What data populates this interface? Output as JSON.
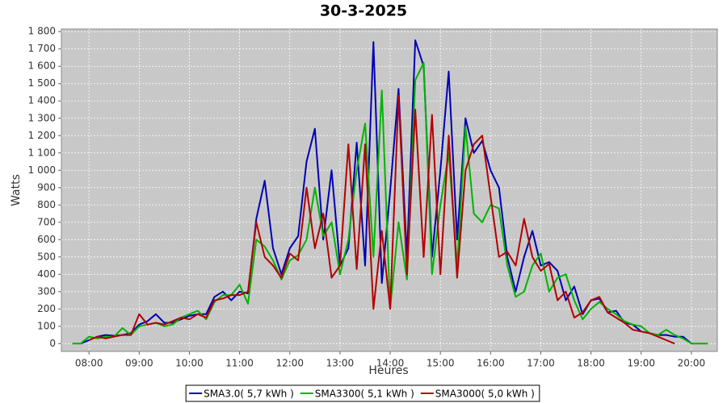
{
  "chart_data": {
    "type": "line",
    "title": "30-3-2025",
    "xlabel": "Heures",
    "ylabel": "Watts",
    "x": [
      460,
      470,
      480,
      490,
      500,
      510,
      520,
      530,
      540,
      550,
      560,
      570,
      580,
      590,
      600,
      610,
      620,
      630,
      640,
      650,
      660,
      670,
      680,
      690,
      700,
      710,
      720,
      730,
      740,
      750,
      760,
      770,
      780,
      790,
      800,
      810,
      820,
      830,
      840,
      850,
      860,
      870,
      880,
      890,
      900,
      910,
      920,
      930,
      940,
      950,
      960,
      970,
      980,
      990,
      1000,
      1010,
      1020,
      1030,
      1040,
      1050,
      1060,
      1070,
      1080,
      1090,
      1100,
      1110,
      1120,
      1130,
      1140,
      1150,
      1160,
      1170,
      1180,
      1190,
      1200,
      1210,
      1220
    ],
    "series": [
      {
        "name": "SMA3.0( 5,7 kWh )",
        "color": "#0000b4",
        "values": [
          null,
          0,
          20,
          40,
          50,
          45,
          50,
          60,
          110,
          130,
          170,
          120,
          120,
          140,
          160,
          170,
          170,
          270,
          300,
          250,
          300,
          290,
          720,
          940,
          550,
          400,
          550,
          620,
          1050,
          1240,
          600,
          1000,
          450,
          550,
          1160,
          450,
          1740,
          350,
          880,
          1470,
          500,
          1750,
          1600,
          500,
          1000,
          1570,
          600,
          1300,
          1100,
          1170,
          1000,
          900,
          500,
          300,
          500,
          650,
          450,
          470,
          420,
          250,
          330,
          170,
          250,
          260,
          180,
          190,
          120,
          110,
          70,
          60,
          50,
          50,
          40,
          40,
          0,
          null,
          null
        ]
      },
      {
        "name": "SMA3300( 5,1 kWh )",
        "color": "#00b400",
        "values": [
          0,
          0,
          40,
          30,
          40,
          40,
          90,
          50,
          100,
          110,
          120,
          100,
          110,
          150,
          170,
          190,
          140,
          240,
          280,
          280,
          340,
          230,
          600,
          560,
          480,
          370,
          480,
          510,
          600,
          900,
          620,
          700,
          400,
          600,
          1000,
          1270,
          500,
          1460,
          200,
          700,
          370,
          1520,
          1620,
          400,
          800,
          1100,
          450,
          1250,
          750,
          700,
          800,
          780,
          450,
          270,
          300,
          450,
          520,
          300,
          380,
          400,
          250,
          140,
          200,
          240,
          200,
          170,
          130,
          110,
          100,
          60,
          50,
          80,
          50,
          30,
          0,
          0,
          0
        ]
      },
      {
        "name": "SMA3000( 5,0 kWh )",
        "color": "#b40000",
        "values": [
          null,
          null,
          20,
          40,
          30,
          40,
          50,
          50,
          170,
          110,
          120,
          110,
          130,
          150,
          140,
          170,
          150,
          250,
          260,
          280,
          280,
          300,
          700,
          500,
          450,
          380,
          520,
          480,
          900,
          550,
          750,
          380,
          450,
          1150,
          430,
          1150,
          200,
          650,
          200,
          1430,
          400,
          1350,
          500,
          1320,
          400,
          1200,
          380,
          1000,
          1150,
          1200,
          850,
          500,
          530,
          450,
          720,
          500,
          420,
          460,
          250,
          300,
          150,
          180,
          250,
          270,
          180,
          150,
          120,
          80,
          70,
          60,
          40,
          20,
          0,
          null,
          null,
          null,
          null
        ]
      }
    ],
    "xlim": [
      447,
      1231
    ],
    "xticks": [
      {
        "value": 480,
        "label": "08:00"
      },
      {
        "value": 540,
        "label": "09:00"
      },
      {
        "value": 600,
        "label": "10:00"
      },
      {
        "value": 660,
        "label": "11:00"
      },
      {
        "value": 720,
        "label": "12:00"
      },
      {
        "value": 780,
        "label": "13:00"
      },
      {
        "value": 840,
        "label": "14:00"
      },
      {
        "value": 900,
        "label": "15:00"
      },
      {
        "value": 960,
        "label": "16:00"
      },
      {
        "value": 1020,
        "label": "17:00"
      },
      {
        "value": 1080,
        "label": "18:00"
      },
      {
        "value": 1140,
        "label": "19:00"
      },
      {
        "value": 1200,
        "label": "20:00"
      }
    ],
    "ylim": [
      -45,
      1815
    ],
    "yticks": [
      0,
      100,
      200,
      300,
      400,
      500,
      600,
      700,
      800,
      900,
      {
        "value": 1000,
        "label": "1 000"
      },
      {
        "value": 1100,
        "label": "1 100"
      },
      {
        "value": 1200,
        "label": "1 200"
      },
      {
        "value": 1300,
        "label": "1 300"
      },
      {
        "value": 1400,
        "label": "1 400"
      },
      {
        "value": 1500,
        "label": "1 500"
      },
      {
        "value": 1600,
        "label": "1 600"
      },
      {
        "value": 1700,
        "label": "1 700"
      },
      {
        "value": 1800,
        "label": "1 800"
      }
    ],
    "grid": true,
    "legend": "bottom"
  }
}
